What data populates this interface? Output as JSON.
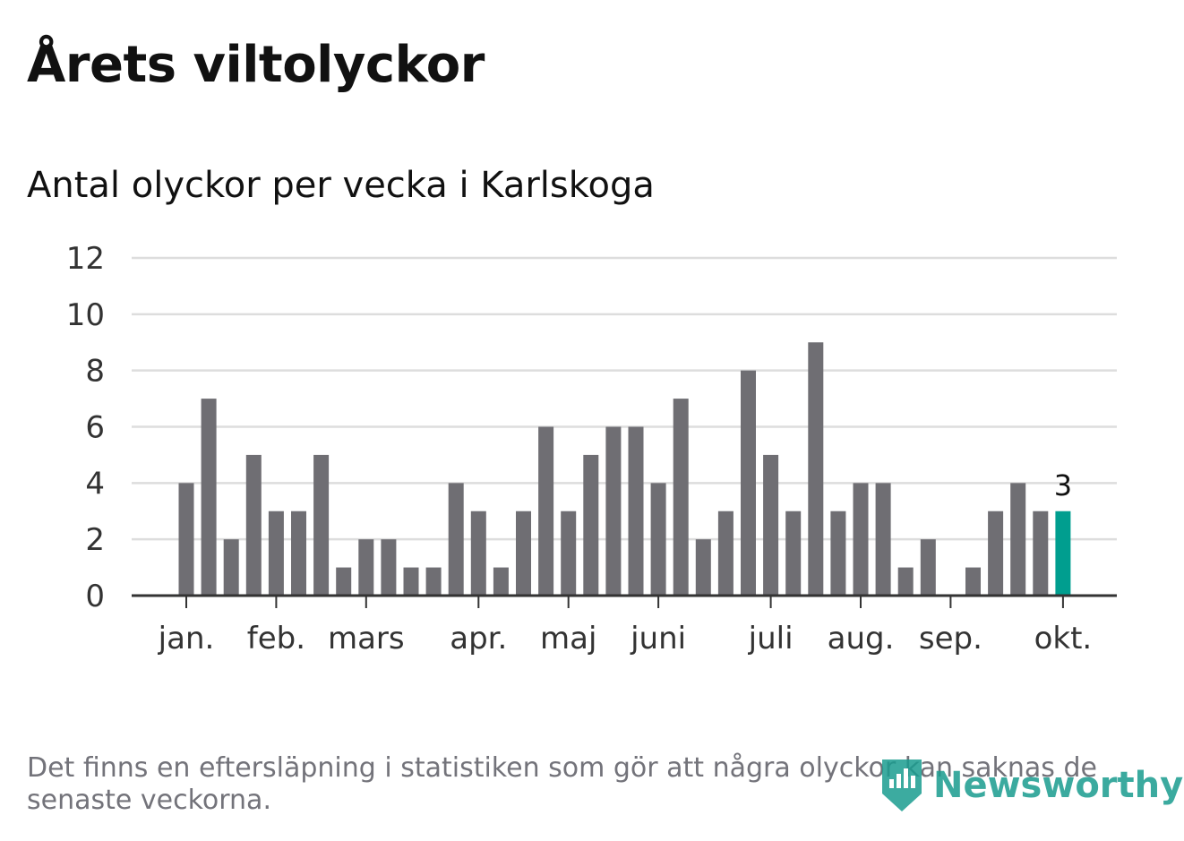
{
  "header": {
    "title": "Årets viltolyckor",
    "subtitle": "Antal olyckor per vecka i Karlskoga"
  },
  "footnote": "Det finns en eftersläpning i statistiken som gör att några olyckor kan saknas de senaste veckorna.",
  "brand": {
    "name": "Newsworthy",
    "icon": "newsworthy-logo-icon"
  },
  "colors": {
    "bar": "#6f6e73",
    "highlight": "#009e8f",
    "grid": "#dddddd",
    "axis": "#333333",
    "brand": "#1a9c8f"
  },
  "chart_data": {
    "type": "bar",
    "values": [
      4,
      7,
      2,
      5,
      3,
      3,
      5,
      1,
      2,
      2,
      1,
      1,
      4,
      3,
      1,
      3,
      6,
      3,
      5,
      6,
      6,
      4,
      7,
      2,
      3,
      8,
      5,
      3,
      9,
      3,
      4,
      4,
      1,
      2,
      0,
      1,
      3,
      4,
      3,
      3
    ],
    "highlight_index": 39,
    "highlight_label": "3",
    "ylim": [
      0,
      12
    ],
    "yticks": [
      "0",
      "2",
      "4",
      "6",
      "8",
      "10",
      "12"
    ],
    "xticks": [
      {
        "label": "jan.",
        "at_bar": 0
      },
      {
        "label": "feb.",
        "at_bar": 4
      },
      {
        "label": "mars",
        "at_bar": 8
      },
      {
        "label": "apr.",
        "at_bar": 13
      },
      {
        "label": "maj",
        "at_bar": 17
      },
      {
        "label": "juni",
        "at_bar": 21
      },
      {
        "label": "juli",
        "at_bar": 26
      },
      {
        "label": "aug.",
        "at_bar": 30
      },
      {
        "label": "sep.",
        "at_bar": 34
      },
      {
        "label": "okt.",
        "at_bar": 39
      }
    ],
    "grid": true
  }
}
